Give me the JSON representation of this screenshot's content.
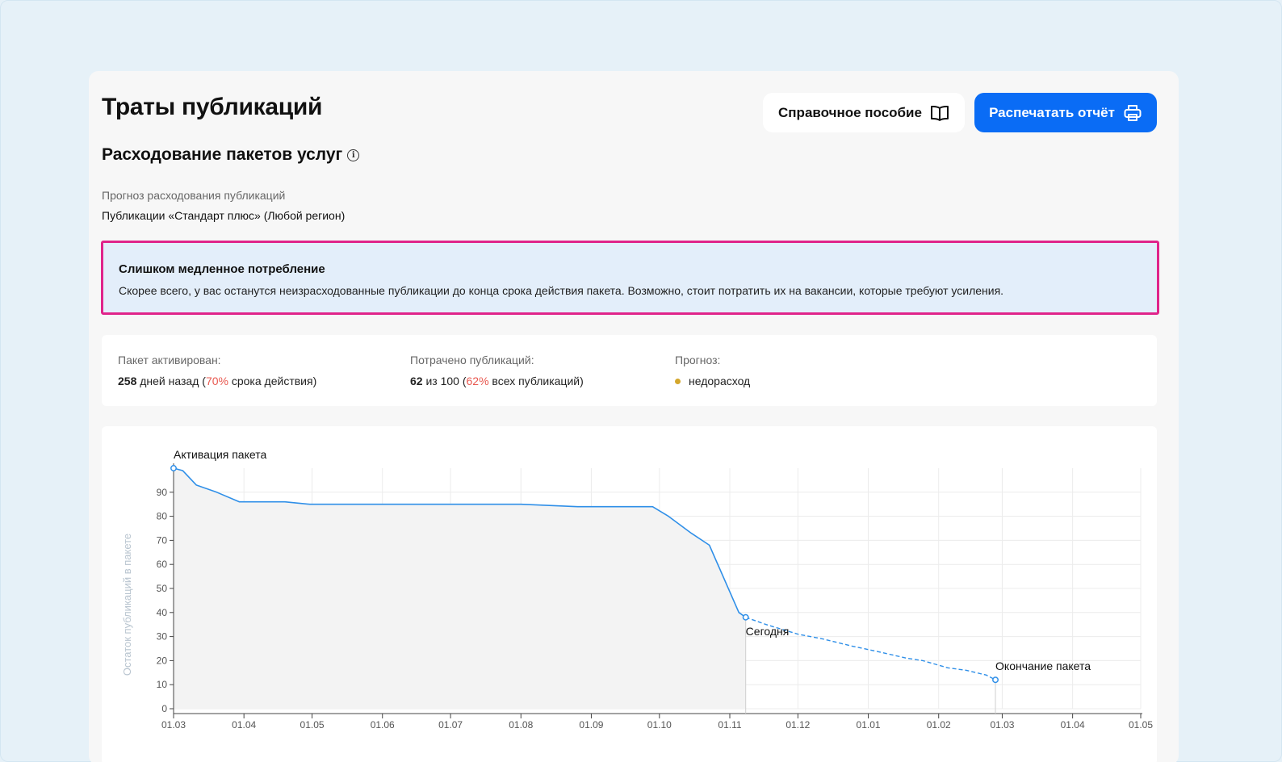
{
  "header": {
    "title": "Траты публикаций",
    "guide_button": "Справочное пособие",
    "print_button": "Распечатать отчёт"
  },
  "section": {
    "title": "Расходование пакетов услуг",
    "forecast_label": "Прогноз расходования публикаций",
    "forecast_value": "Публикации «Стандарт плюс» (Любой регион)"
  },
  "alert": {
    "title": "Слишком медленное потребление",
    "text": "Скорее всего, у вас останутся неизрасходованные публикации до конца срока действия пакета. Возможно, стоит потратить их на вакансии, которые требуют усиления."
  },
  "stats": {
    "activated": {
      "label": "Пакет активирован:",
      "days": "258",
      "days_text": " дней назад (",
      "percent": "70%",
      "suffix": " срока действия)"
    },
    "spent": {
      "label": "Потрачено публикаций:",
      "count": "62",
      "of_text": " из 100 (",
      "percent": "62%",
      "suffix": " всех публикаций)"
    },
    "forecast": {
      "label": "Прогноз:",
      "value": "недорасход",
      "dot_color": "#d4a72c"
    }
  },
  "chart_data": {
    "type": "line",
    "ylabel": "Остаток публикаций в пакете",
    "ylim": [
      0,
      100
    ],
    "yticks": [
      0,
      10,
      20,
      30,
      40,
      50,
      60,
      70,
      80,
      90
    ],
    "x_ticks": [
      "01.03",
      "01.04",
      "01.05",
      "01.06",
      "01.07",
      "01.08",
      "01.09",
      "01.10",
      "01.11",
      "01.12",
      "01.01",
      "01.02",
      "01.03",
      "01.04",
      "01.05"
    ],
    "grid": true,
    "actual_series": {
      "style": "solid",
      "color": "#2f8fe8",
      "points": [
        {
          "x": "01.03",
          "y": 100
        },
        {
          "x": "05.03",
          "y": 99
        },
        {
          "x": "11.03",
          "y": 93
        },
        {
          "x": "20.03",
          "y": 90
        },
        {
          "x": "30.03",
          "y": 86
        },
        {
          "x": "19.04",
          "y": 86
        },
        {
          "x": "30.04",
          "y": 85
        },
        {
          "x": "08.07",
          "y": 85
        },
        {
          "x": "01.08",
          "y": 85
        },
        {
          "x": "26.08",
          "y": 84
        },
        {
          "x": "28.09",
          "y": 84
        },
        {
          "x": "05.10",
          "y": 80
        },
        {
          "x": "15.10",
          "y": 73
        },
        {
          "x": "23.10",
          "y": 68
        },
        {
          "x": "05.11",
          "y": 40
        },
        {
          "x": "08.11",
          "y": 38
        }
      ]
    },
    "forecast_series": {
      "style": "dashed",
      "color": "#2f8fe8",
      "points": [
        {
          "x": "08.11",
          "y": 38
        },
        {
          "x": "17.11",
          "y": 35
        },
        {
          "x": "01.12",
          "y": 31
        },
        {
          "x": "12.12",
          "y": 29
        },
        {
          "x": "25.12",
          "y": 26
        },
        {
          "x": "04.01",
          "y": 24
        },
        {
          "x": "18.01",
          "y": 21
        },
        {
          "x": "25.01",
          "y": 20
        },
        {
          "x": "05.02",
          "y": 17
        },
        {
          "x": "13.02",
          "y": 16
        },
        {
          "x": "22.02",
          "y": 14
        },
        {
          "x": "26.02",
          "y": 12
        }
      ]
    },
    "annotations": [
      {
        "label": "Активация пакета",
        "x": "01.03",
        "y": 100
      },
      {
        "label": "Сегодня",
        "x": "08.11",
        "y": 38
      },
      {
        "label": "Окончание пакета",
        "x": "26.02",
        "y": 12
      }
    ]
  }
}
